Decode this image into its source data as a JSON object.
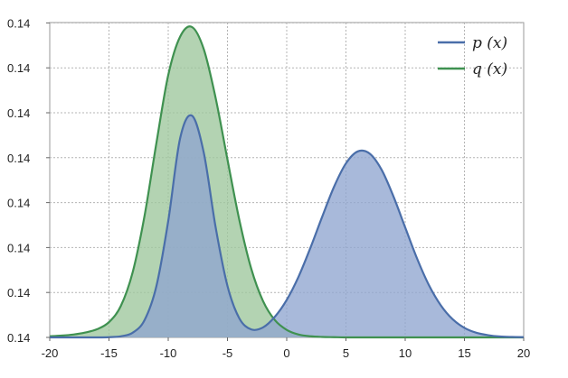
{
  "chart_data": {
    "type": "area",
    "title": "",
    "xlabel": "",
    "ylabel": "",
    "xlim": [
      -20,
      20
    ],
    "ylim": [
      0,
      0.142
    ],
    "x_ticks": [
      -20,
      -15,
      -10,
      -5,
      0,
      5,
      10,
      15,
      20
    ],
    "x_tick_labels": [
      "-20",
      "-15",
      "-10",
      "-5",
      "0",
      "5",
      "10",
      "15",
      "20"
    ],
    "y_tick_labels": [
      "0.14",
      "0.14",
      "0.14",
      "0.14",
      "0.14",
      "0.14",
      "0.14",
      "0.14"
    ],
    "grid": true,
    "legend_position": "top-right",
    "x": [
      -20,
      -19,
      -18,
      -17,
      -16,
      -15,
      -14,
      -13,
      -12,
      -11,
      -10,
      -9,
      -8,
      -7,
      -6,
      -5,
      -4,
      -3,
      -2,
      -1,
      0,
      1,
      2,
      3,
      4,
      5,
      6,
      7,
      8,
      9,
      10,
      11,
      12,
      13,
      14,
      15,
      16,
      17,
      18,
      19,
      20
    ],
    "series": [
      {
        "name": "p (x)",
        "color": "#4a6ea9",
        "fill": "#8fa5cf",
        "values": [
          0.0,
          0.0,
          0.0,
          0.0,
          0.0,
          0.0001,
          0.0005,
          0.0021,
          0.0078,
          0.0231,
          0.0525,
          0.0897,
          0.1,
          0.0833,
          0.0497,
          0.0232,
          0.0086,
          0.0036,
          0.0045,
          0.0093,
          0.0169,
          0.0274,
          0.0404,
          0.0545,
          0.068,
          0.0785,
          0.0839,
          0.0829,
          0.0757,
          0.0637,
          0.0496,
          0.0356,
          0.0236,
          0.0145,
          0.0082,
          0.0043,
          0.0021,
          0.001,
          0.0004,
          0.0002,
          0.0001
        ]
      },
      {
        "name": "q (x)",
        "color": "#3f9150",
        "fill": "#9ec79c",
        "values": [
          0.0005,
          0.0008,
          0.0013,
          0.0022,
          0.0037,
          0.0069,
          0.0142,
          0.0294,
          0.0548,
          0.0876,
          0.1183,
          0.1356,
          0.14,
          0.13,
          0.108,
          0.0802,
          0.053,
          0.0311,
          0.0164,
          0.0078,
          0.0034,
          0.0013,
          0.0005,
          0.0002,
          0.0001,
          0.0,
          0.0,
          0.0,
          0.0,
          0.0,
          0.0,
          0.0,
          0.0,
          0.0,
          0.0,
          0.0,
          0.0,
          0.0,
          0.0,
          0.0,
          0.0
        ]
      }
    ]
  }
}
